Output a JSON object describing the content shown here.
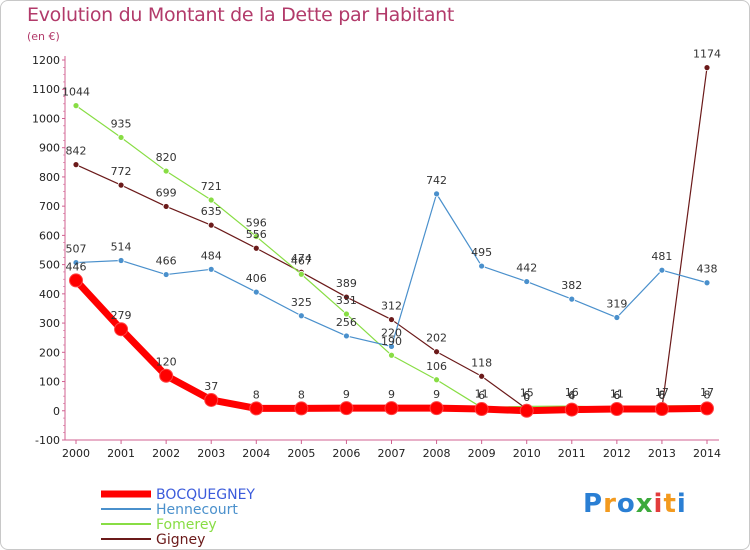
{
  "chart_data": {
    "type": "line",
    "title": "Evolution du Montant de la Dette par Habitant",
    "subtitle": "(en €)",
    "x": [
      "2000",
      "2001",
      "2002",
      "2003",
      "2004",
      "2005",
      "2006",
      "2007",
      "2008",
      "2009",
      "2010",
      "2011",
      "2012",
      "2013",
      "2014"
    ],
    "ylim": [
      -100,
      1200
    ],
    "yticks": [
      -100,
      0,
      100,
      200,
      300,
      400,
      500,
      600,
      700,
      800,
      900,
      1000,
      1100,
      1200
    ],
    "grid": false,
    "legend_position": "bottom-left",
    "series": [
      {
        "name": "BOCQUEGNEY",
        "color": "#ff0000",
        "values": [
          446,
          279,
          120,
          37,
          8,
          8,
          9,
          9,
          9,
          6,
          0,
          4,
          6,
          6,
          8
        ]
      },
      {
        "name": "Hennecourt",
        "color": "#4a90cc",
        "values": [
          507,
          514,
          466,
          484,
          406,
          325,
          256,
          220,
          742,
          495,
          442,
          382,
          319,
          481,
          438
        ]
      },
      {
        "name": "Fomerey",
        "color": "#88dd44",
        "values": [
          1044,
          935,
          820,
          721,
          596,
          467,
          331,
          190,
          106,
          11,
          15,
          16,
          11,
          17,
          17
        ]
      },
      {
        "name": "Gigney",
        "color": "#6b1a1a",
        "values": [
          842,
          772,
          699,
          635,
          556,
          474,
          389,
          312,
          202,
          118,
          6,
          6,
          6,
          8,
          1174
        ]
      }
    ]
  },
  "logo": {
    "letters": [
      "P",
      "r",
      "o",
      "x",
      "i",
      "t",
      "i"
    ],
    "colors": [
      "#2a7fd4",
      "#f39a1e",
      "#2a7fd4",
      "#3caa3c",
      "#e23c3c",
      "#f39a1e",
      "#2a7fd4"
    ]
  }
}
